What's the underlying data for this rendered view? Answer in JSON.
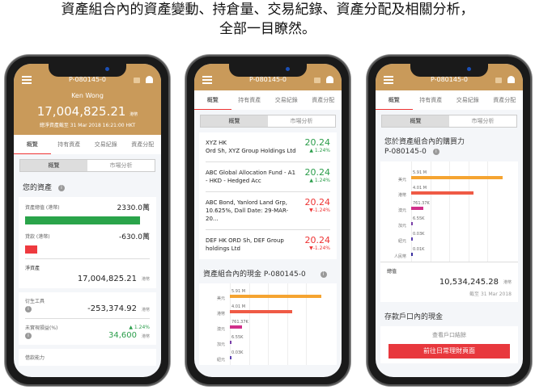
{
  "headline": {
    "line1": "資產組合內的資產變動、持倉量、交易紀錄、資產分配及相關分析，",
    "line2": "全部一目瞭然。"
  },
  "common": {
    "portfolio_id": "P-080145-0",
    "tabs": [
      "概覽",
      "持有資產",
      "交易紀錄",
      "資產分配"
    ],
    "segments": [
      "概覽",
      "市場分析"
    ],
    "currency": "港幣",
    "info_icon": "info-icon"
  },
  "phone1": {
    "user": "Ken Wong",
    "total": "17,004,825.21",
    "as_of": "總淨資產截至 31 Mar 2018 16:21:00 HKT",
    "section": "您的資產",
    "assets_label": "資產總值 (港幣)",
    "assets_value": "2330.0萬",
    "loan_label": "貸款 (港幣)",
    "loan_value": "-630.0萬",
    "net_label": "淨資產",
    "net_value": "17,004,825.21",
    "deriv_label": "衍生工具",
    "deriv_value": "-253,374.92",
    "pnl_label": "未實現損益(%)",
    "pnl_pct": "▲ 1.24%",
    "pnl_value": "34,600",
    "borrow_label": "借款能力",
    "colors": {
      "assets": "#2aa44a",
      "loan": "#ee3a3f"
    }
  },
  "phone2": {
    "holdings": [
      {
        "name": "XYZ HK\nOrd Sh, XYZ Group Holdings Ltd",
        "price": "20.24",
        "change": "▲ 1.24%",
        "dir": "up"
      },
      {
        "name": "ABC Global Allocation Fund - A1 - HKD - Hedged Acc",
        "price": "20.24",
        "change": "▲ 1.24%",
        "dir": "up"
      },
      {
        "name": "ABC Bond, Yanlord Land Grp, 10.625%, Dall Date: 29-MAR-20...",
        "price": "20.24",
        "change": "▼-1.24%",
        "dir": "dn"
      },
      {
        "name": "DEF HK ORD Sh, DEF Group holdings Ltd",
        "price": "20.24",
        "change": "▼-1.24%",
        "dir": "dn"
      }
    ],
    "cash_title": "資產組合內的現金 P-080145-0"
  },
  "phone3": {
    "title_line1": "您於資產組合內的購買力",
    "title_line2": "P-080145-0",
    "total_label": "總值",
    "total_value": "10,534,245.28",
    "as_of": "截至 31 Mar 2018",
    "deposit_title": "存款戶口內的現金",
    "view_balance": "查看戶口結餘",
    "go_button": "前往日常理財頁面"
  },
  "chart_data": {
    "type": "bar",
    "orientation": "horizontal",
    "categories": [
      "美元",
      "港幣",
      "澳元",
      "加元",
      "紐元",
      "人民幣"
    ],
    "values": [
      5910000,
      4010000,
      761370,
      6550,
      30,
      10
    ],
    "data_labels": [
      "5.91 M",
      "4.01 M",
      "761.37K",
      "6.55K",
      "0.03K",
      "0.01K"
    ],
    "colors": [
      "#f5a431",
      "#ef5a45",
      "#d02f8a",
      "#7a3fa8",
      "#5a3fb0",
      "#3a2fa0"
    ],
    "grid": true
  }
}
